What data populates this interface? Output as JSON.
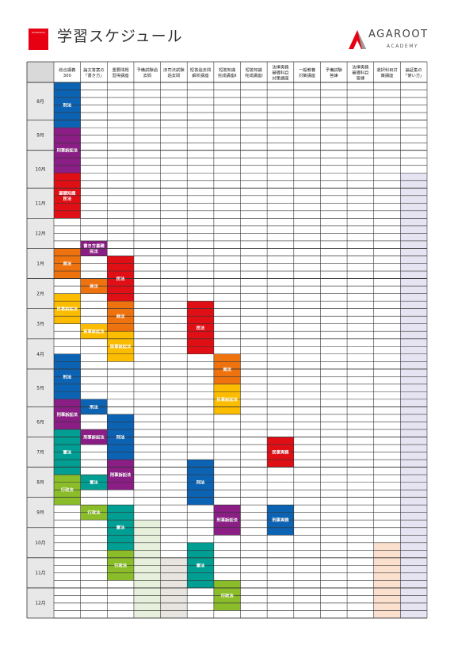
{
  "header": {
    "badge": "SCHEDULE",
    "title": "学習スケジュール",
    "logo_text": "AGAROOT",
    "logo_sub": "ACADEMY"
  },
  "columns": [
    [
      "総合講義",
      "300"
    ],
    [
      "論文答案の",
      "「書き方」"
    ],
    [
      "重要問題",
      "習得講座"
    ],
    [
      "予備試験過",
      "去問"
    ],
    [
      "旧司法試験",
      "過去問"
    ],
    [
      "短答過去問",
      "解析講座"
    ],
    [
      "短答知識",
      "完成講座Ⅱ"
    ],
    [
      "短答知識",
      "完成講座Ⅰ"
    ],
    [
      "法律実務",
      "基礎科目",
      "対策講座"
    ],
    [
      "一般教養",
      "対策講座"
    ],
    [
      "予備試験",
      "答練"
    ],
    [
      "法律実務",
      "基礎科目",
      "答練"
    ],
    [
      "選択科目対",
      "策講座"
    ],
    [
      "論証集の",
      "「使い方」"
    ]
  ],
  "months": [
    "8月",
    "9月",
    "10月",
    "11月",
    "12月",
    "1月",
    "2月",
    "3月",
    "4月",
    "5月",
    "6月",
    "7月",
    "8月",
    "9月",
    "10月",
    "11月",
    "12月"
  ],
  "blocks": [
    {
      "col": 0,
      "start": 0,
      "end": 6,
      "color": "#0d63b3",
      "label": "刑法"
    },
    {
      "col": 0,
      "start": 6,
      "end": 12,
      "color": "#8a1e84",
      "label": "刑事訴訟法"
    },
    {
      "col": 0,
      "start": 12,
      "end": 18,
      "color": "#e00f16",
      "label": "基礎知識\n民法"
    },
    {
      "col": 0,
      "start": 18,
      "end": 22,
      "color": "#ffffff",
      "label": ""
    },
    {
      "col": 0,
      "start": 22,
      "end": 26,
      "color": "#ee730f",
      "label": "商法"
    },
    {
      "col": 0,
      "start": 28,
      "end": 32,
      "color": "#fcbc00",
      "label": "民事訴訟法"
    },
    {
      "col": 0,
      "start": 36,
      "end": 42,
      "color": "#0d63b3",
      "label": "刑法"
    },
    {
      "col": 0,
      "start": 42,
      "end": 46,
      "color": "#8a1e84",
      "label": "刑事訴訟法"
    },
    {
      "col": 0,
      "start": 46,
      "end": 52,
      "color": "#009e93",
      "label": "憲法"
    },
    {
      "col": 0,
      "start": 52,
      "end": 56,
      "color": "#8bbd2b",
      "label": "行政法"
    },
    {
      "col": 1,
      "start": 21,
      "end": 23,
      "color": "#8a1e84",
      "label": "書き方基礎\n民法"
    },
    {
      "col": 1,
      "start": 26,
      "end": 28,
      "color": "#ee730f",
      "label": "商法"
    },
    {
      "col": 1,
      "start": 32,
      "end": 34,
      "color": "#fcbc00",
      "label": "民事訴訟法"
    },
    {
      "col": 1,
      "start": 42,
      "end": 44,
      "color": "#0d63b3",
      "label": "刑法"
    },
    {
      "col": 1,
      "start": 46,
      "end": 48,
      "color": "#8a1e84",
      "label": "刑事訴訟法"
    },
    {
      "col": 1,
      "start": 52,
      "end": 54,
      "color": "#009e93",
      "label": "憲法"
    },
    {
      "col": 1,
      "start": 56,
      "end": 58,
      "color": "#8bbd2b",
      "label": "行政法"
    },
    {
      "col": 2,
      "start": 23,
      "end": 29,
      "color": "#e00f16",
      "label": "民法"
    },
    {
      "col": 2,
      "start": 29,
      "end": 33,
      "color": "#ee730f",
      "label": "商法"
    },
    {
      "col": 2,
      "start": 33,
      "end": 37,
      "color": "#fcbc00",
      "label": "民事訴訟法"
    },
    {
      "col": 2,
      "start": 44,
      "end": 50,
      "color": "#0d63b3",
      "label": "刑法"
    },
    {
      "col": 2,
      "start": 50,
      "end": 54,
      "color": "#8a1e84",
      "label": "刑事訴訟法"
    },
    {
      "col": 2,
      "start": 56,
      "end": 62,
      "color": "#009e93",
      "label": "憲法"
    },
    {
      "col": 2,
      "start": 62,
      "end": 66,
      "color": "#8bbd2b",
      "label": "行政法"
    },
    {
      "col": 3,
      "start": 58,
      "end": 71,
      "color": "#e6f0dc",
      "label": ""
    },
    {
      "col": 4,
      "start": 63,
      "end": 71,
      "color": "#e8e4e0",
      "label": ""
    },
    {
      "col": 5,
      "start": 29,
      "end": 36,
      "color": "#e00f16",
      "label": "民法"
    },
    {
      "col": 5,
      "start": 50,
      "end": 56,
      "color": "#0d63b3",
      "label": "刑法"
    },
    {
      "col": 5,
      "start": 61,
      "end": 67,
      "color": "#009e93",
      "label": "憲法"
    },
    {
      "col": 6,
      "start": 36,
      "end": 40,
      "color": "#ee730f",
      "label": "商法"
    },
    {
      "col": 6,
      "start": 40,
      "end": 44,
      "color": "#fcbc00",
      "label": "民事訴訟法"
    },
    {
      "col": 6,
      "start": 56,
      "end": 60,
      "color": "#8a1e84",
      "label": "刑事訴訟法"
    },
    {
      "col": 6,
      "start": 66,
      "end": 70,
      "color": "#8bbd2b",
      "label": "行政法"
    },
    {
      "col": 8,
      "start": 47,
      "end": 51,
      "color": "#e00f16",
      "label": "民事実務"
    },
    {
      "col": 8,
      "start": 56,
      "end": 60,
      "color": "#0d63b3",
      "label": "刑事実務"
    },
    {
      "col": 12,
      "start": 61,
      "end": 71,
      "color": "#fce0ce",
      "label": ""
    },
    {
      "col": 13,
      "start": 12,
      "end": 71,
      "color": "#e6e4f2",
      "label": ""
    }
  ]
}
